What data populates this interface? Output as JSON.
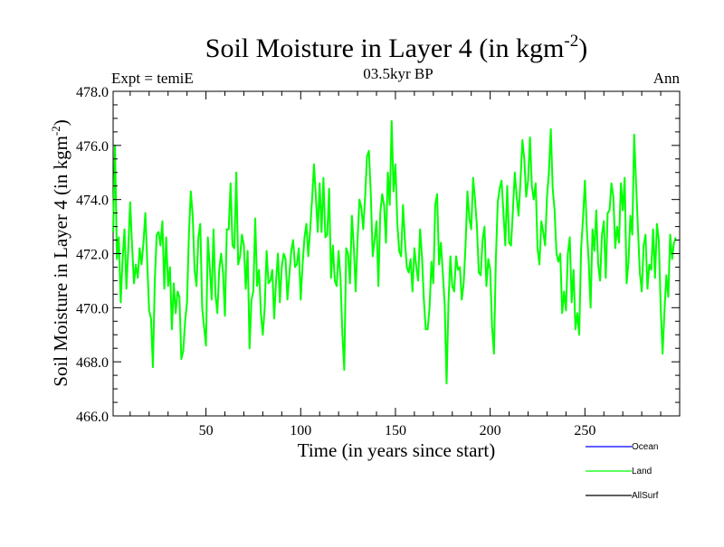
{
  "chart_data": {
    "type": "line",
    "title_main": "Soil Moisture in Layer 4 (in kgm",
    "title_sup": "-2",
    "title_close": ")",
    "subtitle_left": "Expt = temiE",
    "subtitle_center": "03.5kyr BP",
    "subtitle_right": "Ann",
    "xlabel": "Time (in years since start)",
    "ylabel_main": "Soil Moisture in Layer 4 (in kgm",
    "ylabel_sup": "-2",
    "ylabel_close": ")",
    "xlim": [
      1,
      300
    ],
    "ylim": [
      466.0,
      478.0
    ],
    "xticks": [
      50,
      100,
      150,
      200,
      250
    ],
    "yticks": [
      "466.0",
      "468.0",
      "470.0",
      "472.0",
      "474.0",
      "476.0",
      "478.0"
    ],
    "legend": [
      {
        "name": "Ocean",
        "color": "#0000ff"
      },
      {
        "name": "Land",
        "color": "#00ff00"
      },
      {
        "name": "AllSurf",
        "color": "#000000"
      }
    ],
    "series": [
      {
        "name": "Land",
        "color": "#00ff00",
        "start_year": 1,
        "values": [
          472.8,
          476.0,
          471.8,
          472.6,
          470.2,
          471.8,
          472.9,
          470.7,
          472.2,
          473.9,
          472.3,
          470.9,
          471.6,
          471.1,
          472.2,
          471.6,
          472.4,
          473.5,
          471.7,
          469.9,
          469.6,
          467.8,
          471.0,
          472.7,
          472.8,
          472.3,
          473.2,
          470.7,
          472.6,
          470.8,
          471.5,
          469.2,
          470.9,
          469.8,
          470.6,
          470.4,
          468.1,
          468.4,
          469.5,
          470.2,
          472.7,
          474.3,
          473.4,
          471.4,
          470.8,
          472.6,
          473.1,
          470.0,
          469.3,
          468.6,
          472.6,
          471.5,
          470.3,
          472.9,
          470.5,
          469.8,
          471.4,
          472.0,
          471.3,
          469.7,
          472.9,
          472.9,
          474.6,
          472.3,
          472.2,
          475.0,
          471.6,
          471.9,
          472.7,
          472.3,
          470.7,
          472.1,
          468.5,
          470.3,
          470.6,
          473.3,
          470.8,
          471.4,
          469.8,
          469.0,
          470.0,
          472.1,
          470.9,
          471.0,
          471.4,
          469.6,
          471.0,
          472.0,
          470.2,
          471.5,
          472.0,
          471.8,
          470.3,
          471.2,
          472.1,
          472.5,
          471.5,
          471.6,
          472.2,
          470.3,
          471.6,
          472.6,
          473.1,
          471.9,
          472.9,
          474.0,
          475.3,
          474.1,
          472.8,
          474.6,
          472.8,
          474.8,
          472.6,
          472.7,
          474.4,
          471.1,
          472.3,
          471.0,
          470.8,
          472.1,
          471.1,
          469.0,
          467.7,
          472.2,
          472.0,
          470.9,
          473.4,
          472.3,
          470.6,
          472.5,
          474.0,
          473.7,
          472.9,
          474.1,
          475.6,
          475.8,
          474.2,
          471.9,
          472.5,
          473.2,
          470.8,
          473.5,
          474.2,
          473.8,
          472.4,
          475.0,
          473.8,
          476.9,
          474.3,
          475.3,
          473.1,
          472.1,
          471.9,
          473.8,
          472.5,
          471.5,
          471.3,
          471.8,
          470.6,
          472.2,
          471.5,
          471.0,
          472.9,
          471.9,
          470.3,
          469.2,
          469.2,
          470.0,
          471.7,
          470.9,
          473.8,
          474.2,
          471.6,
          472.4,
          471.3,
          470.1,
          467.2,
          470.2,
          471.9,
          470.8,
          470.6,
          471.9,
          471.4,
          471.5,
          470.3,
          470.9,
          472.3,
          474.3,
          473.3,
          472.9,
          474.8,
          474.0,
          473.0,
          471.3,
          471.2,
          472.5,
          473.0,
          470.8,
          471.8,
          471.4,
          469.3,
          468.3,
          471.8,
          473.9,
          474.4,
          474.7,
          473.5,
          472.3,
          474.5,
          472.4,
          472.3,
          473.6,
          475.0,
          474.1,
          473.4,
          474.7,
          476.2,
          475.5,
          474.1,
          474.7,
          476.3,
          474.5,
          474.0,
          474.6,
          472.2,
          471.6,
          473.2,
          472.8,
          472.3,
          474.1,
          475.0,
          476.6,
          474.4,
          473.6,
          472.0,
          471.7,
          472.0,
          469.8,
          470.6,
          469.9,
          472.0,
          472.6,
          470.2,
          471.4,
          469.2,
          469.8,
          469.0,
          472.2,
          473.3,
          474.7,
          472.9,
          471.7,
          470.0,
          472.9,
          472.1,
          473.6,
          471.6,
          471.0,
          472.7,
          473.2,
          471.1,
          473.5,
          473.6,
          474.6,
          474.1,
          472.2,
          473.0,
          472.4,
          474.6,
          473.6,
          474.8,
          470.9,
          471.7,
          473.4,
          472.7,
          476.4,
          474.6,
          472.9,
          471.3,
          470.6,
          472.3,
          472.7,
          470.7,
          471.6,
          471.4,
          472.9,
          471.1,
          473.1,
          472.5,
          470.0,
          468.3,
          469.9,
          471.2,
          470.4,
          472.7,
          471.8,
          472.4,
          472.6
        ]
      }
    ]
  }
}
